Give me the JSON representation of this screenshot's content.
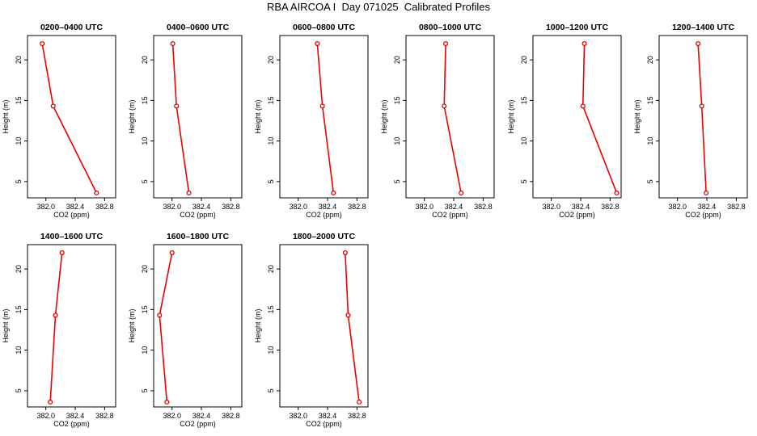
{
  "title": "RBA AIRCOA I  Day 071025  Calibrated Profiles",
  "chart_data": [
    {
      "type": "line",
      "title": "0200–0400 UTC",
      "xlabel": "CO2 (ppm)",
      "ylabel": "Height (m)",
      "xlim": [
        381.75,
        382.95
      ],
      "ylim": [
        3,
        23
      ],
      "xticks": [
        382.0,
        382.4,
        382.8
      ],
      "xtick_labels": [
        "382.0",
        "382.4",
        "382.8"
      ],
      "yticks": [
        5,
        10,
        15,
        20
      ],
      "ytick_labels": [
        "5",
        "10",
        "15",
        "20"
      ],
      "series": [
        {
          "x": [
            381.95,
            382.1,
            382.69
          ],
          "y": [
            22,
            14.3,
            3.6
          ]
        }
      ]
    },
    {
      "type": "line",
      "title": "0400–0600 UTC",
      "xlabel": "CO2 (ppm)",
      "ylabel": "Height (m)",
      "xlim": [
        381.75,
        382.95
      ],
      "ylim": [
        3,
        23
      ],
      "xticks": [
        382.0,
        382.4,
        382.8
      ],
      "xtick_labels": [
        "382.0",
        "382.4",
        "382.8"
      ],
      "yticks": [
        5,
        10,
        15,
        20
      ],
      "ytick_labels": [
        "5",
        "10",
        "15",
        "20"
      ],
      "series": [
        {
          "x": [
            382.01,
            382.06,
            382.23
          ],
          "y": [
            22,
            14.3,
            3.6
          ]
        }
      ]
    },
    {
      "type": "line",
      "title": "0600–0800 UTC",
      "xlabel": "CO2 (ppm)",
      "ylabel": "Height (m)",
      "xlim": [
        381.75,
        382.95
      ],
      "ylim": [
        3,
        23
      ],
      "xticks": [
        382.0,
        382.4,
        382.8
      ],
      "xtick_labels": [
        "382.0",
        "382.4",
        "382.8"
      ],
      "yticks": [
        5,
        10,
        15,
        20
      ],
      "ytick_labels": [
        "5",
        "10",
        "15",
        "20"
      ],
      "series": [
        {
          "x": [
            382.26,
            382.33,
            382.48
          ],
          "y": [
            22,
            14.3,
            3.6
          ]
        }
      ]
    },
    {
      "type": "line",
      "title": "0800–1000 UTC",
      "xlabel": "CO2 (ppm)",
      "ylabel": "Height (m)",
      "xlim": [
        381.75,
        382.95
      ],
      "ylim": [
        3,
        23
      ],
      "xticks": [
        382.0,
        382.4,
        382.8
      ],
      "xtick_labels": [
        "382.0",
        "382.4",
        "382.8"
      ],
      "yticks": [
        5,
        10,
        15,
        20
      ],
      "ytick_labels": [
        "5",
        "10",
        "15",
        "20"
      ],
      "series": [
        {
          "x": [
            382.29,
            382.27,
            382.5
          ],
          "y": [
            22,
            14.3,
            3.6
          ]
        }
      ]
    },
    {
      "type": "line",
      "title": "1000–1200 UTC",
      "xlabel": "CO2 (ppm)",
      "ylabel": "Height (m)",
      "xlim": [
        381.75,
        382.95
      ],
      "ylim": [
        3,
        23
      ],
      "xticks": [
        382.0,
        382.4,
        382.8
      ],
      "xtick_labels": [
        "382.0",
        "382.4",
        "382.8"
      ],
      "yticks": [
        5,
        10,
        15,
        20
      ],
      "ytick_labels": [
        "5",
        "10",
        "15",
        "20"
      ],
      "series": [
        {
          "x": [
            382.45,
            382.43,
            382.89
          ],
          "y": [
            22,
            14.3,
            3.6
          ]
        }
      ]
    },
    {
      "type": "line",
      "title": "1200–1400 UTC",
      "xlabel": "CO2 (ppm)",
      "ylabel": "Height (m)",
      "xlim": [
        381.75,
        382.95
      ],
      "ylim": [
        3,
        23
      ],
      "xticks": [
        382.0,
        382.4,
        382.8
      ],
      "xtick_labels": [
        "382.0",
        "382.4",
        "382.8"
      ],
      "yticks": [
        5,
        10,
        15,
        20
      ],
      "ytick_labels": [
        "5",
        "10",
        "15",
        "20"
      ],
      "series": [
        {
          "x": [
            382.28,
            382.33,
            382.39
          ],
          "y": [
            22,
            14.3,
            3.6
          ]
        }
      ]
    },
    {
      "type": "line",
      "title": "1400–1600 UTC",
      "xlabel": "CO2 (ppm)",
      "ylabel": "Height (m)",
      "xlim": [
        381.75,
        382.95
      ],
      "ylim": [
        3,
        23
      ],
      "xticks": [
        382.0,
        382.4,
        382.8
      ],
      "xtick_labels": [
        "382.0",
        "382.4",
        "382.8"
      ],
      "yticks": [
        5,
        10,
        15,
        20
      ],
      "ytick_labels": [
        "5",
        "10",
        "15",
        "20"
      ],
      "series": [
        {
          "x": [
            382.22,
            382.13,
            382.06
          ],
          "y": [
            22,
            14.3,
            3.6
          ]
        }
      ]
    },
    {
      "type": "line",
      "title": "1600–1800 UTC",
      "xlabel": "CO2 (ppm)",
      "ylabel": "Height (m)",
      "xlim": [
        381.75,
        382.95
      ],
      "ylim": [
        3,
        23
      ],
      "xticks": [
        382.0,
        382.4,
        382.8
      ],
      "xtick_labels": [
        "382.0",
        "382.4",
        "382.8"
      ],
      "yticks": [
        5,
        10,
        15,
        20
      ],
      "ytick_labels": [
        "5",
        "10",
        "15",
        "20"
      ],
      "series": [
        {
          "x": [
            382.0,
            381.83,
            381.93
          ],
          "y": [
            22,
            14.3,
            3.6
          ]
        }
      ]
    },
    {
      "type": "line",
      "title": "1800–2000 UTC",
      "xlabel": "CO2 (ppm)",
      "ylabel": "Height (m)",
      "xlim": [
        381.75,
        382.95
      ],
      "ylim": [
        3,
        23
      ],
      "xticks": [
        382.0,
        382.4,
        382.8
      ],
      "xtick_labels": [
        "382.0",
        "382.4",
        "382.8"
      ],
      "yticks": [
        5,
        10,
        15,
        20
      ],
      "ytick_labels": [
        "5",
        "10",
        "15",
        "20"
      ],
      "series": [
        {
          "x": [
            382.64,
            382.68,
            382.83
          ],
          "y": [
            22,
            14.3,
            3.6
          ]
        }
      ]
    }
  ],
  "colors": {
    "line": "#ee0000",
    "marker": "#dd0000",
    "axis": "#000000",
    "background": "#ffffff"
  }
}
